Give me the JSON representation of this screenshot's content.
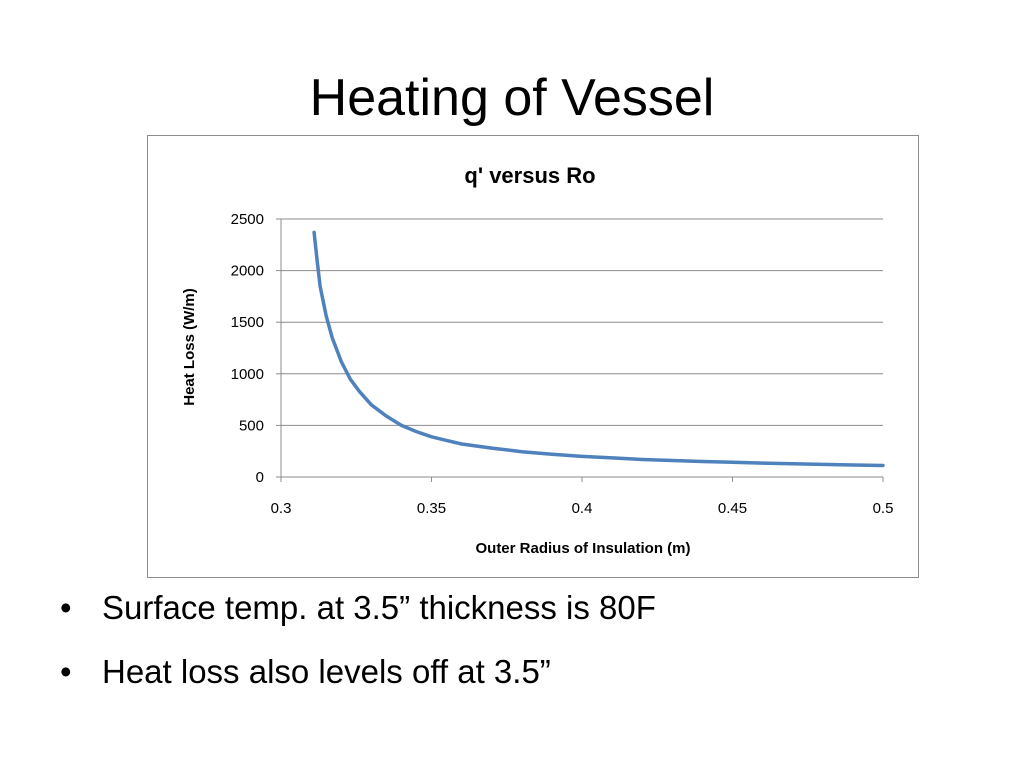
{
  "slide": {
    "title": "Heating of Vessel",
    "bullets": [
      "Surface temp. at 3.5” thickness is 80F",
      "Heat loss also levels off at 3.5”"
    ],
    "bullet_glyph": "•"
  },
  "chart_data": {
    "type": "line",
    "title": "q' versus Ro",
    "xlabel": "Outer Radius of Insulation (m)",
    "ylabel": "Heat Loss (W/m)",
    "xlim": [
      0.3,
      0.5
    ],
    "ylim": [
      0,
      2500
    ],
    "xticks": [
      "0.3",
      "0.35",
      "0.4",
      "0.45",
      "0.5"
    ],
    "yticks": [
      "0",
      "500",
      "1000",
      "1500",
      "2000",
      "2500"
    ],
    "grid": "horizontal",
    "legend": "none",
    "series": [
      {
        "color": "#4f81bd",
        "x": [
          0.311,
          0.312,
          0.313,
          0.315,
          0.317,
          0.32,
          0.323,
          0.326,
          0.33,
          0.335,
          0.34,
          0.345,
          0.35,
          0.355,
          0.36,
          0.37,
          0.38,
          0.39,
          0.4,
          0.41,
          0.42,
          0.43,
          0.44,
          0.45,
          0.46,
          0.47,
          0.48,
          0.49,
          0.5
        ],
        "y": [
          2370,
          2100,
          1850,
          1560,
          1350,
          1120,
          950,
          830,
          700,
          590,
          500,
          440,
          390,
          355,
          320,
          280,
          245,
          220,
          200,
          185,
          170,
          160,
          150,
          142,
          135,
          128,
          122,
          116,
          111
        ]
      }
    ]
  }
}
